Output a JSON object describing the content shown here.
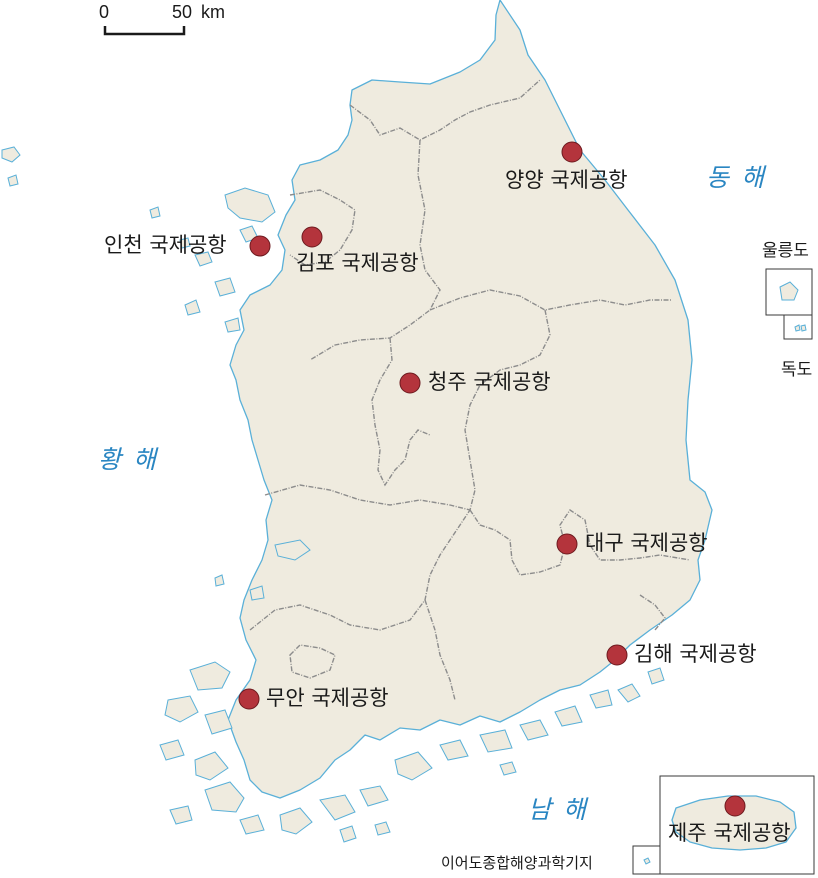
{
  "scale_bar": {
    "zero_label": "0",
    "distance_label": "50",
    "unit_label": "km"
  },
  "seas": {
    "east": "동 해",
    "west": "황 해",
    "south": "남 해"
  },
  "islands": {
    "ulleungdo": "울릉도",
    "dokdo": "독도",
    "ieodo": "이어도종합해양과학기지"
  },
  "airports": [
    {
      "id": "incheon",
      "label": "인천 국제공항"
    },
    {
      "id": "gimpo",
      "label": "김포 국제공항"
    },
    {
      "id": "yangyang",
      "label": "양양 국제공항"
    },
    {
      "id": "cheongju",
      "label": "청주 국제공항"
    },
    {
      "id": "daegu",
      "label": "대구 국제공항"
    },
    {
      "id": "gimhae",
      "label": "김해 국제공항"
    },
    {
      "id": "muan",
      "label": "무안 국제공항"
    },
    {
      "id": "jeju",
      "label": "제주 국제공항"
    }
  ],
  "colors": {
    "land": "#efebdf",
    "coast": "#5ab0d8",
    "sea_label": "#2a86c2",
    "airport_marker": "#b4343c"
  }
}
